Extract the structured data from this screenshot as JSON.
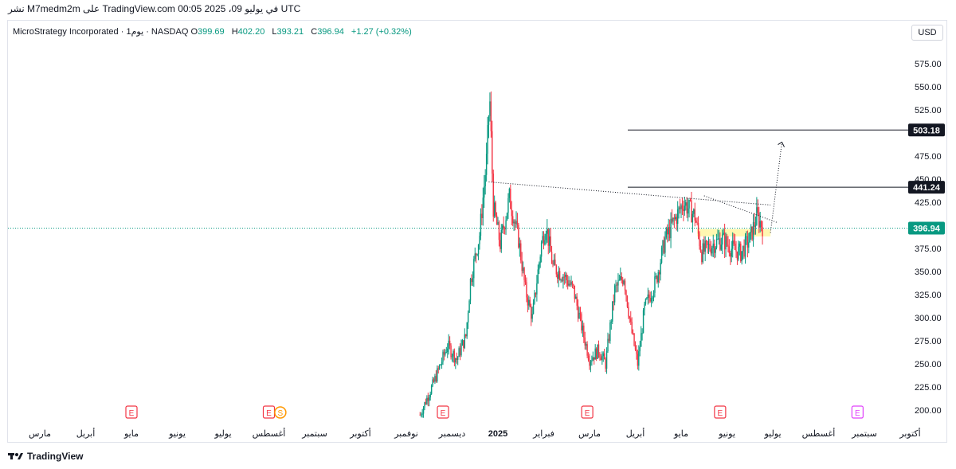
{
  "header": {
    "published": "نشر M7medm2m على TradingView.com في يوليو 09، 2025 00:05 UTC",
    "symbol": "MicroStrategy Incorporated · 1يوم · NASDAQ",
    "open_label": "O",
    "open": "399.69",
    "high_label": "H",
    "high": "402.20",
    "low_label": "L",
    "low": "393.21",
    "close_label": "C",
    "close": "396.94",
    "change": "+1.27 (+0.32%)",
    "currency": "USD"
  },
  "footer": {
    "brand": "TradingView"
  },
  "colors": {
    "up": "#089981",
    "down": "#f23645",
    "last": "#089981",
    "highlight": "#fff59d",
    "earnings": "#f23645",
    "dividend": "#e040fb"
  },
  "chart_data": {
    "type": "candlestick",
    "ylim": [
      190,
      590
    ],
    "y_ticks": [
      "575.00",
      "550.00",
      "525.00",
      "500.00",
      "475.00",
      "450.00",
      "425.00",
      "400.00",
      "375.00",
      "350.00",
      "325.00",
      "300.00",
      "275.00",
      "250.00",
      "225.00",
      "200.00"
    ],
    "x_ticks": [
      "مارس",
      "أبريل",
      "مايو",
      "يونيو",
      "يوليو",
      "أغسطس",
      "سبتمبر",
      "أكتوبر",
      "نوفمبر",
      "ديسمبر",
      "2025",
      "فبراير",
      "مارس",
      "أبريل",
      "مايو",
      "يونيو",
      "يوليو",
      "أغسطس",
      "سبتمبر",
      "أكتوبر"
    ],
    "levels": [
      {
        "value": 503.18,
        "label": "503.18"
      },
      {
        "value": 441.24,
        "label": "441.24"
      }
    ],
    "last_price": {
      "value": 396.94,
      "label": "396.94"
    },
    "price_path": [
      {
        "t": 8.3,
        "p": 195
      },
      {
        "t": 8.6,
        "p": 230
      },
      {
        "t": 8.9,
        "p": 270
      },
      {
        "t": 9.1,
        "p": 255
      },
      {
        "t": 9.3,
        "p": 280
      },
      {
        "t": 9.4,
        "p": 340
      },
      {
        "t": 9.6,
        "p": 390
      },
      {
        "t": 9.75,
        "p": 470
      },
      {
        "t": 9.82,
        "p": 540
      },
      {
        "t": 9.9,
        "p": 420
      },
      {
        "t": 10.05,
        "p": 380
      },
      {
        "t": 10.25,
        "p": 430
      },
      {
        "t": 10.45,
        "p": 385
      },
      {
        "t": 10.6,
        "p": 330
      },
      {
        "t": 10.75,
        "p": 300
      },
      {
        "t": 10.95,
        "p": 380
      },
      {
        "t": 11.05,
        "p": 400
      },
      {
        "t": 11.2,
        "p": 355
      },
      {
        "t": 11.45,
        "p": 345
      },
      {
        "t": 11.65,
        "p": 330
      },
      {
        "t": 11.85,
        "p": 285
      },
      {
        "t": 12.0,
        "p": 255
      },
      {
        "t": 12.2,
        "p": 265
      },
      {
        "t": 12.35,
        "p": 250
      },
      {
        "t": 12.55,
        "p": 330
      },
      {
        "t": 12.75,
        "p": 345
      },
      {
        "t": 12.9,
        "p": 290
      },
      {
        "t": 13.05,
        "p": 250
      },
      {
        "t": 13.2,
        "p": 310
      },
      {
        "t": 13.45,
        "p": 340
      },
      {
        "t": 13.65,
        "p": 385
      },
      {
        "t": 13.85,
        "p": 405
      },
      {
        "t": 14.05,
        "p": 425
      },
      {
        "t": 14.3,
        "p": 410
      },
      {
        "t": 14.45,
        "p": 370
      },
      {
        "t": 14.7,
        "p": 380
      },
      {
        "t": 14.9,
        "p": 385
      },
      {
        "t": 15.1,
        "p": 375
      },
      {
        "t": 15.3,
        "p": 370
      },
      {
        "t": 15.5,
        "p": 385
      },
      {
        "t": 15.65,
        "p": 410
      },
      {
        "t": 15.8,
        "p": 397
      }
    ],
    "trendline_upper": [
      {
        "t": 9.8,
        "p": 447
      },
      {
        "t": 15.95,
        "p": 422
      }
    ],
    "trendline_lower": [
      {
        "t": 14.5,
        "p": 432
      },
      {
        "t": 16.1,
        "p": 403
      }
    ],
    "projection": [
      {
        "t": 15.95,
        "p": 392
      },
      {
        "t": 16.2,
        "p": 490
      }
    ],
    "highlight_zone": {
      "t0": 14.35,
      "t1": 15.95,
      "p0": 388,
      "p1": 396
    },
    "events": [
      {
        "t": 2.0,
        "type": "earnings",
        "label": "E"
      },
      {
        "t": 5.0,
        "type": "earnings",
        "label": "E"
      },
      {
        "t": 5.25,
        "type": "dividend-split",
        "label": "S"
      },
      {
        "t": 8.8,
        "type": "earnings",
        "label": "E"
      },
      {
        "t": 11.95,
        "type": "earnings",
        "label": "E"
      },
      {
        "t": 14.85,
        "type": "earnings",
        "label": "E"
      },
      {
        "t": 17.85,
        "type": "upcoming-earnings",
        "label": "E"
      }
    ]
  }
}
